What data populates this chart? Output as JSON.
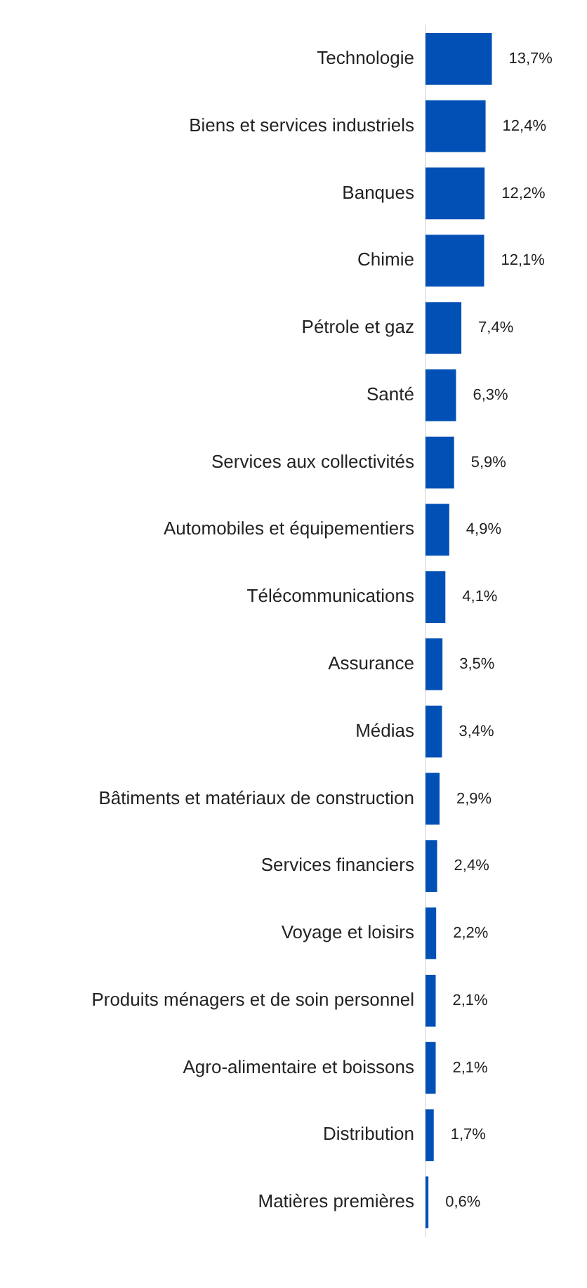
{
  "chart_data": {
    "type": "bar",
    "orientation": "horizontal",
    "tick_labels": "y",
    "grid": false,
    "legend": false,
    "color": "#0050b5",
    "categories": [
      "Technologie",
      "Biens et services industriels",
      "Banques",
      "Chimie",
      "Pétrole et gaz",
      "Santé",
      "Services aux collectivités",
      "Automobiles et équipementiers",
      "Télécommunications",
      "Assurance",
      "Médias",
      "Bâtiments et matériaux de construction",
      "Services financiers",
      "Voyage et loisirs",
      "Produits ménagers et de soin personnel",
      "Agro-alimentaire et boissons",
      "Distribution",
      "Matières premières"
    ],
    "values": [
      13.7,
      12.4,
      12.2,
      12.1,
      7.4,
      6.3,
      5.9,
      4.9,
      4.1,
      3.5,
      3.4,
      2.9,
      2.4,
      2.2,
      2.1,
      2.1,
      1.7,
      0.6
    ],
    "value_labels": [
      "13,7%",
      "12,4%",
      "12,2%",
      "12,1%",
      "7,4%",
      "6,3%",
      "5,9%",
      "4,9%",
      "4,1%",
      "3,5%",
      "3,4%",
      "2,9%",
      "2,4%",
      "2,2%",
      "2,1%",
      "2,1%",
      "1,7%",
      "0,6%"
    ]
  }
}
